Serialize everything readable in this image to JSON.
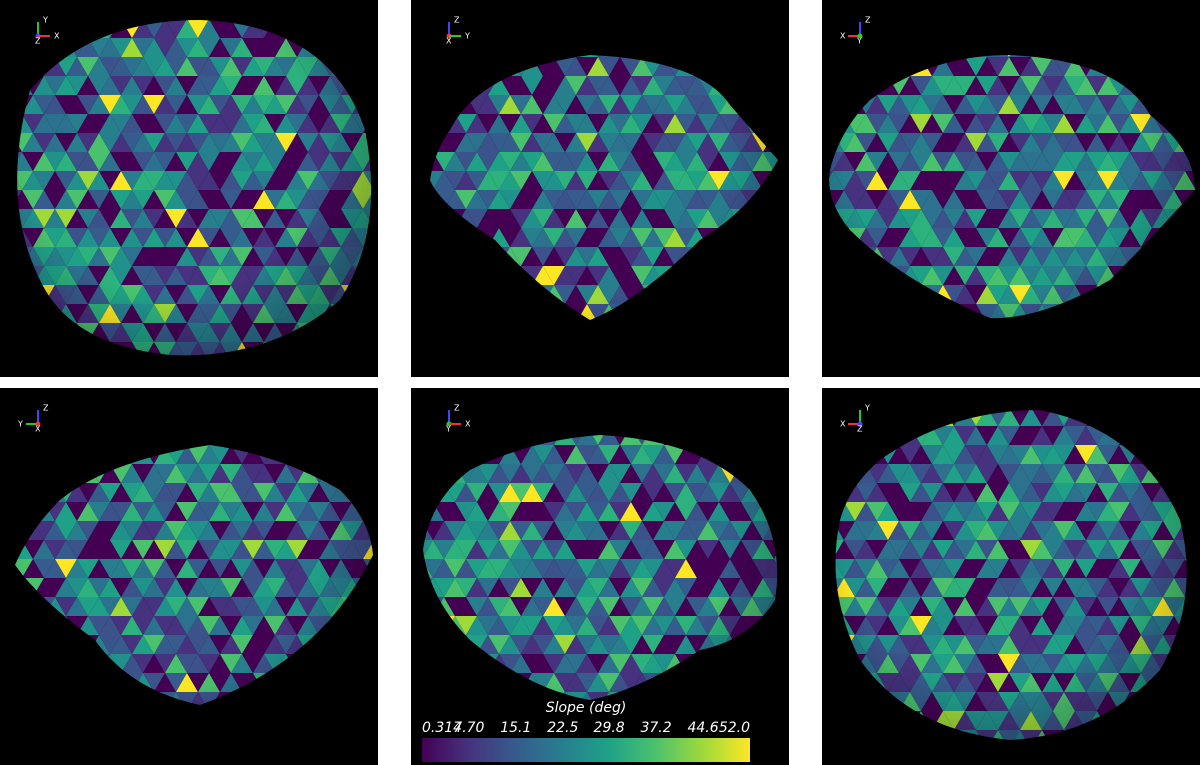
{
  "panels": [
    {
      "axes": [
        "Y",
        "Z",
        "X"
      ]
    },
    {
      "axes": [
        "Z",
        "X",
        "Y"
      ]
    },
    {
      "axes": [
        "Z",
        "X",
        "Y"
      ]
    },
    {
      "axes": [
        "Z",
        "Y",
        "X"
      ]
    },
    {
      "axes": [
        "Z",
        "Y",
        "X"
      ]
    },
    {
      "axes": [
        "Y",
        "X",
        "Z"
      ]
    }
  ],
  "colorbar": {
    "title": "Slope (deg)",
    "lim": [
      0.314,
      52
    ],
    "ticks": [
      0.314,
      {
        "value": 7.7,
        "label": "7.70"
      },
      15.1,
      22.5,
      29.8,
      37.2,
      44.6,
      {
        "value": 52,
        "label": "52.0"
      }
    ]
  }
}
